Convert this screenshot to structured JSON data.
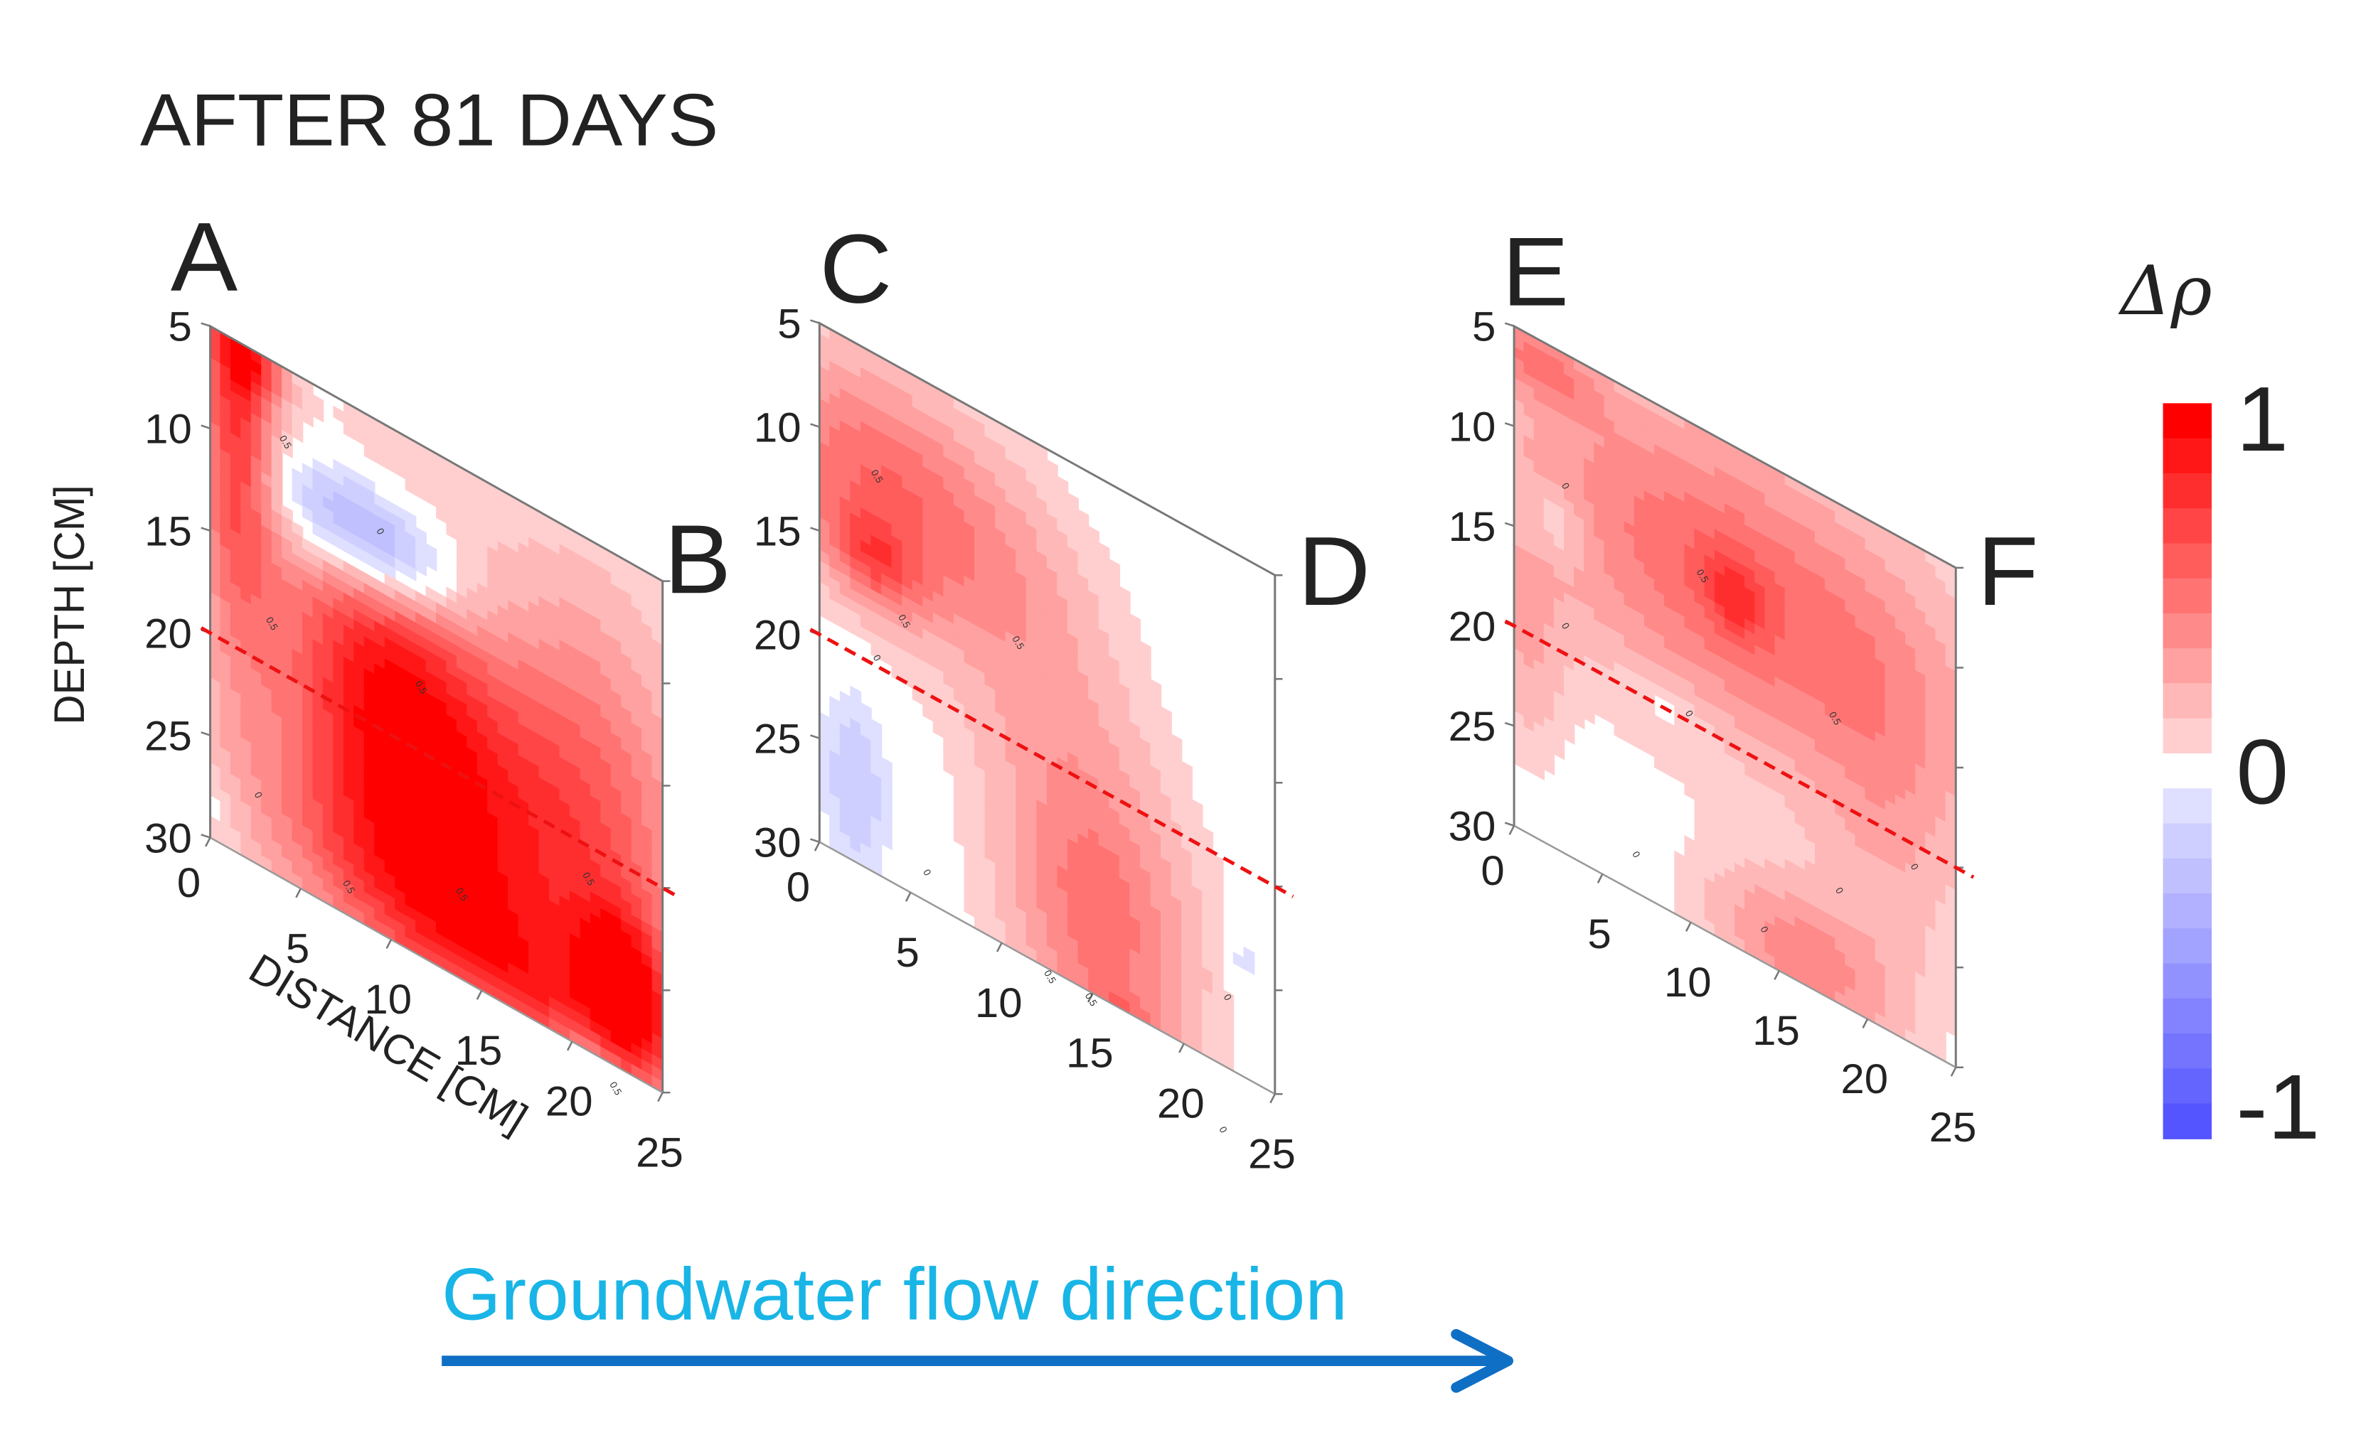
{
  "chart_data": {
    "type": "heatmap",
    "title": "AFTER 81 DAYS",
    "ylabel": "DEPTH [CM]",
    "xlabel": "DISTANCE [CM]",
    "y_ticks": [
      "5",
      "10",
      "15",
      "20",
      "25",
      "30"
    ],
    "x_ticks": [
      "0",
      "5",
      "10",
      "15",
      "20",
      "25"
    ],
    "ylim": [
      5,
      30
    ],
    "xlim": [
      0,
      25
    ],
    "boundary_depth_cm": 20,
    "panels": [
      {
        "start_label": "A",
        "end_label": "B",
        "blobs": [
          {
            "u": 0.06,
            "v": 0.06,
            "su": 0.06,
            "sv": 0.35,
            "a": 0.8
          },
          {
            "u": 0.09,
            "v": 0.03,
            "su": 0.05,
            "sv": 0.04,
            "a": 0.35
          },
          {
            "u": 0.4,
            "v": 0.5,
            "su": 0.18,
            "sv": 0.24,
            "a": 0.75
          },
          {
            "u": 0.6,
            "v": 0.72,
            "su": 0.28,
            "sv": 0.22,
            "a": 0.55
          },
          {
            "u": 0.92,
            "v": 0.84,
            "su": 0.07,
            "sv": 0.1,
            "a": 0.8
          },
          {
            "u": 0.85,
            "v": 0.45,
            "su": 0.16,
            "sv": 0.28,
            "a": 0.4
          },
          {
            "u": 0.45,
            "v": 0.9,
            "su": 0.25,
            "sv": 0.12,
            "a": 0.4
          },
          {
            "u": 0.8,
            "v": 0.95,
            "su": 0.2,
            "sv": 0.08,
            "a": 0.3
          },
          {
            "u": 0.36,
            "v": 0.24,
            "su": 0.14,
            "sv": 0.08,
            "a": -0.75
          },
          {
            "u": 0.84,
            "v": 1.1,
            "su": 0.05,
            "sv": 0.08,
            "a": -0.6
          },
          {
            "u": 0.02,
            "v": 0.92,
            "su": 0.04,
            "sv": 0.05,
            "a": -0.1
          }
        ],
        "contour_marks": [
          {
            "u": 0.16,
            "v": 0.15,
            "text": "0.5"
          },
          {
            "u": 0.37,
            "v": 0.22,
            "text": "0"
          },
          {
            "u": 0.46,
            "v": 0.48,
            "text": "0.5"
          },
          {
            "u": 0.13,
            "v": 0.52,
            "text": "0.5"
          },
          {
            "u": 0.83,
            "v": 0.67,
            "text": "0.5"
          },
          {
            "u": 0.55,
            "v": 0.84,
            "text": "0.5"
          },
          {
            "u": 0.1,
            "v": 0.87,
            "text": "0"
          },
          {
            "u": 0.3,
            "v": 0.95,
            "text": "0.5"
          },
          {
            "u": 0.89,
            "v": 1.05,
            "text": "0.5"
          }
        ]
      },
      {
        "start_label": "C",
        "end_label": "D",
        "blobs": [
          {
            "u": 0.15,
            "v": 0.25,
            "su": 0.22,
            "sv": 0.16,
            "a": 0.55
          },
          {
            "u": 0.12,
            "v": 0.4,
            "su": 0.07,
            "sv": 0.06,
            "a": 0.4
          },
          {
            "u": 0.48,
            "v": 0.45,
            "su": 0.15,
            "sv": 0.2,
            "a": 0.18
          },
          {
            "u": 0.62,
            "v": 0.85,
            "su": 0.15,
            "sv": 0.22,
            "a": 0.5
          },
          {
            "u": 0.68,
            "v": 1.05,
            "su": 0.06,
            "sv": 0.05,
            "a": 0.35
          },
          {
            "u": 0.08,
            "v": 0.85,
            "su": 0.05,
            "sv": 0.12,
            "a": -0.25
          },
          {
            "u": 0.93,
            "v": 0.78,
            "su": 0.03,
            "sv": 0.04,
            "a": -0.15
          }
        ],
        "contour_marks": [
          {
            "u": 0.12,
            "v": 0.24,
            "text": "0.5"
          },
          {
            "u": 0.43,
            "v": 0.41,
            "text": "0.5"
          },
          {
            "u": 0.18,
            "v": 0.49,
            "text": "0.5"
          },
          {
            "u": 0.12,
            "v": 0.59,
            "text": "0"
          },
          {
            "u": 0.89,
            "v": 0.87,
            "text": "0"
          },
          {
            "u": 0.23,
            "v": 0.95,
            "text": "0"
          },
          {
            "u": 0.5,
            "v": 1.02,
            "text": "0.5"
          },
          {
            "u": 0.59,
            "v": 1.02,
            "text": "0.5"
          },
          {
            "u": 0.88,
            "v": 1.13,
            "text": "0"
          }
        ]
      },
      {
        "start_label": "E",
        "end_label": "F",
        "blobs": [
          {
            "u": 0.5,
            "v": 0.28,
            "su": 0.38,
            "sv": 0.22,
            "a": 0.55
          },
          {
            "u": 0.05,
            "v": 0.05,
            "su": 0.1,
            "sv": 0.05,
            "a": 0.35
          },
          {
            "u": 0.5,
            "v": 0.3,
            "su": 0.05,
            "sv": 0.06,
            "a": 0.3
          },
          {
            "u": 0.65,
            "v": 0.95,
            "su": 0.15,
            "sv": 0.1,
            "a": 0.4
          },
          {
            "u": 0.85,
            "v": 0.6,
            "su": 0.12,
            "sv": 0.25,
            "a": 0.18
          },
          {
            "u": 0.03,
            "v": 0.65,
            "su": 0.06,
            "sv": 0.15,
            "a": 0.2
          },
          {
            "u": 0.1,
            "v": 0.35,
            "su": 0.05,
            "sv": 0.05,
            "a": -0.2
          },
          {
            "u": 0.35,
            "v": 0.59,
            "su": 0.07,
            "sv": 0.04,
            "a": -0.12
          }
        ],
        "contour_marks": [
          {
            "u": 0.11,
            "v": 0.27,
            "text": "0"
          },
          {
            "u": 0.42,
            "v": 0.3,
            "text": "0.5"
          },
          {
            "u": 0.72,
            "v": 0.44,
            "text": "0.5"
          },
          {
            "u": 0.11,
            "v": 0.55,
            "text": "0"
          },
          {
            "u": 0.39,
            "v": 0.59,
            "text": "0"
          },
          {
            "u": 0.9,
            "v": 0.65,
            "text": "0"
          },
          {
            "u": 0.73,
            "v": 0.78,
            "text": "0"
          },
          {
            "u": 0.27,
            "v": 0.93,
            "text": "0"
          },
          {
            "u": 0.56,
            "v": 0.94,
            "text": "0"
          }
        ]
      }
    ],
    "colorbar": {
      "label": "Δρ",
      "tick_labels": [
        "1",
        "0",
        "-1"
      ],
      "range": [
        -1,
        1
      ],
      "levels": [
        1,
        0.9,
        0.8,
        0.7,
        0.6,
        0.5,
        0.4,
        0.3,
        0.2,
        0.1,
        0,
        -0.1,
        -0.2,
        -0.3,
        -0.4,
        -0.5,
        -0.6,
        -0.7,
        -0.8,
        -0.9,
        -1
      ],
      "positive_color": "#ff0000",
      "negative_color": "#5555ff"
    },
    "flow_direction_label": "Groundwater flow direction",
    "flow_color": "#19b5e6",
    "arrow_color": "#0f6fc4",
    "boundary_line_color": "#ee1111"
  }
}
